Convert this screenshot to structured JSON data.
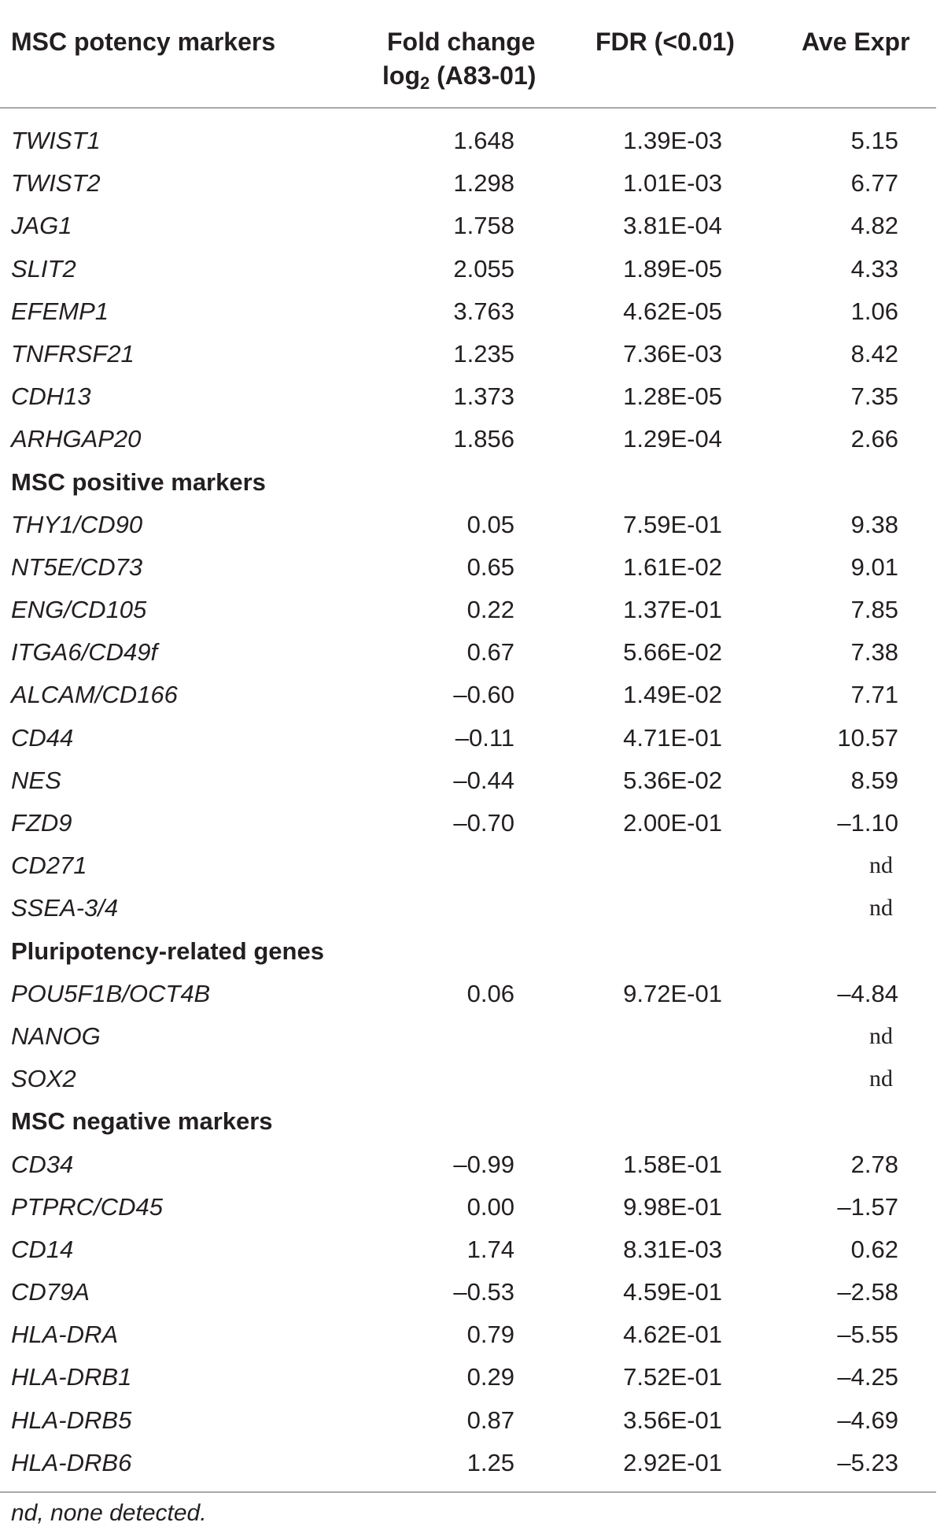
{
  "table": {
    "headers": {
      "col1": "MSC potency markers",
      "col2_line1": "Fold change",
      "col2_line2_prefix": "log",
      "col2_line2_sub": "2",
      "col2_line2_suffix": " (A83-01)",
      "col3": "FDR (<0.01)",
      "col4": "Ave Expr"
    },
    "rows": [
      {
        "gene": "TWIST1",
        "fc": "1.648",
        "fdr": "1.39E-03",
        "ave": "5.15"
      },
      {
        "gene": "TWIST2",
        "fc": "1.298",
        "fdr": "1.01E-03",
        "ave": "6.77"
      },
      {
        "gene": "JAG1",
        "fc": "1.758",
        "fdr": "3.81E-04",
        "ave": "4.82"
      },
      {
        "gene": "SLIT2",
        "fc": "2.055",
        "fdr": "1.89E-05",
        "ave": "4.33"
      },
      {
        "gene": "EFEMP1",
        "fc": "3.763",
        "fdr": "4.62E-05",
        "ave": "1.06"
      },
      {
        "gene": "TNFRSF21",
        "fc": "1.235",
        "fdr": "7.36E-03",
        "ave": "8.42"
      },
      {
        "gene": "CDH13",
        "fc": "1.373",
        "fdr": "1.28E-05",
        "ave": "7.35"
      },
      {
        "gene": "ARHGAP20",
        "fc": "1.856",
        "fdr": "1.29E-04",
        "ave": "2.66"
      },
      {
        "section": "MSC positive markers"
      },
      {
        "gene": "THY1/CD90",
        "fc": "0.05",
        "fdr": "7.59E-01",
        "ave": "9.38"
      },
      {
        "gene": "NT5E/CD73",
        "fc": "0.65",
        "fdr": "1.61E-02",
        "ave": "9.01"
      },
      {
        "gene": "ENG/CD105",
        "fc": "0.22",
        "fdr": "1.37E-01",
        "ave": "7.85"
      },
      {
        "gene": "ITGA6/CD49f",
        "fc": "0.67",
        "fdr": "5.66E-02",
        "ave": "7.38"
      },
      {
        "gene": "ALCAM/CD166",
        "fc": "–0.60",
        "fdr": "1.49E-02",
        "ave": "7.71"
      },
      {
        "gene": "CD44",
        "fc": "–0.11",
        "fdr": "4.71E-01",
        "ave": "10.57"
      },
      {
        "gene": "NES",
        "fc": "–0.44",
        "fdr": "5.36E-02",
        "ave": "8.59"
      },
      {
        "gene": "FZD9",
        "fc": "–0.70",
        "fdr": "2.00E-01",
        "ave": "–1.10"
      },
      {
        "gene": "CD271",
        "fc": "",
        "fdr": "",
        "ave": "nd"
      },
      {
        "gene": "SSEA-3/4",
        "fc": "",
        "fdr": "",
        "ave": "nd"
      },
      {
        "section": "Pluripotency-related genes"
      },
      {
        "gene": "POU5F1B/OCT4B",
        "fc": "0.06",
        "fdr": "9.72E-01",
        "ave": "–4.84"
      },
      {
        "gene": "NANOG",
        "fc": "",
        "fdr": "",
        "ave": "nd"
      },
      {
        "gene": "SOX2",
        "fc": "",
        "fdr": "",
        "ave": "nd"
      },
      {
        "section": "MSC negative markers"
      },
      {
        "gene": "CD34",
        "fc": "–0.99",
        "fdr": "1.58E-01",
        "ave": "2.78"
      },
      {
        "gene": "PTPRC/CD45",
        "fc": "0.00",
        "fdr": "9.98E-01",
        "ave": "–1.57"
      },
      {
        "gene": "CD14",
        "fc": "1.74",
        "fdr": "8.31E-03",
        "ave": "0.62"
      },
      {
        "gene": "CD79A",
        "fc": "–0.53",
        "fdr": "4.59E-01",
        "ave": "–2.58"
      },
      {
        "gene": "HLA-DRA",
        "fc": "0.79",
        "fdr": "4.62E-01",
        "ave": "–5.55"
      },
      {
        "gene": "HLA-DRB1",
        "fc": "0.29",
        "fdr": "7.52E-01",
        "ave": "–4.25"
      },
      {
        "gene": "HLA-DRB5",
        "fc": "0.87",
        "fdr": "3.56E-01",
        "ave": "–4.69"
      },
      {
        "gene": "HLA-DRB6",
        "fc": "1.25",
        "fdr": "2.92E-01",
        "ave": "–5.23"
      }
    ],
    "footnote": "nd, none detected."
  }
}
